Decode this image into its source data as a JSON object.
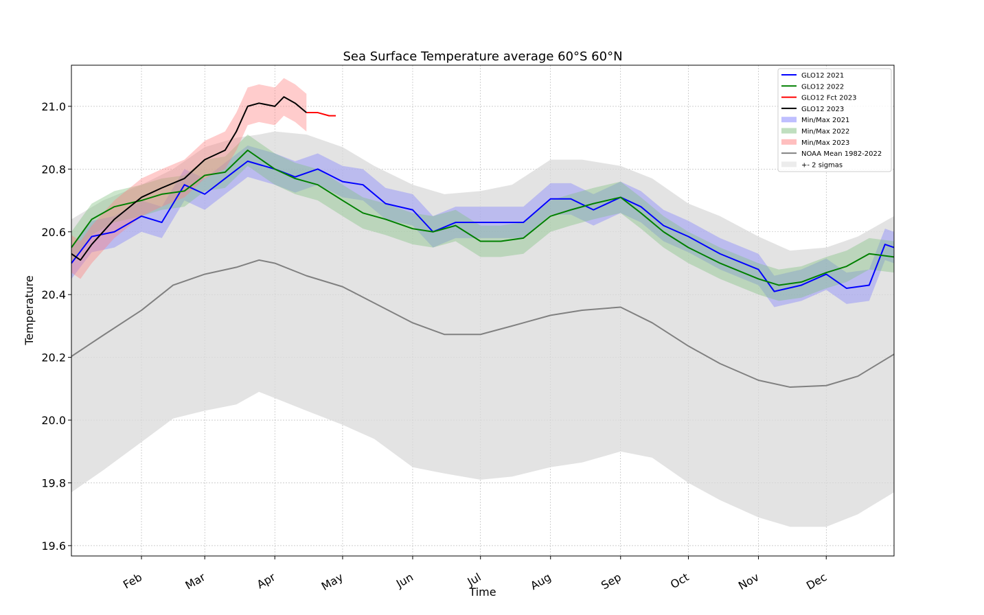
{
  "chart_data": {
    "type": "line",
    "title": "Sea Surface Temperature average 60°S 60°N",
    "xlabel": "Time",
    "ylabel": "Temperature",
    "xlim_doy": [
      1,
      365
    ],
    "ylim": [
      19.567,
      21.131
    ],
    "yticks": [
      19.6,
      19.8,
      20.0,
      20.2,
      20.4,
      20.6,
      20.8,
      21.0
    ],
    "xticks": [
      {
        "label": "Feb",
        "doy": 32
      },
      {
        "label": "Mar",
        "doy": 60
      },
      {
        "label": "Apr",
        "doy": 91
      },
      {
        "label": "May",
        "doy": 121
      },
      {
        "label": "Jun",
        "doy": 152
      },
      {
        "label": "Jul",
        "doy": 182
      },
      {
        "label": "Aug",
        "doy": 213
      },
      {
        "label": "Sep",
        "doy": 244
      },
      {
        "label": "Oct",
        "doy": 274
      },
      {
        "label": "Nov",
        "doy": 305
      },
      {
        "label": "Dec",
        "doy": 335
      }
    ],
    "grid": true,
    "legend_position": "top-right",
    "sigma_band": {
      "name": "+- 2 sigmas",
      "color": "#d9d9d9",
      "doy": [
        1,
        15,
        32,
        46,
        60,
        74,
        84,
        91,
        105,
        121,
        135,
        152,
        166,
        182,
        196,
        213,
        227,
        244,
        258,
        274,
        288,
        305,
        319,
        335,
        349,
        365
      ],
      "upper": [
        20.64,
        20.7,
        20.75,
        20.8,
        20.87,
        20.9,
        20.91,
        20.92,
        20.91,
        20.87,
        20.81,
        20.75,
        20.72,
        20.73,
        20.75,
        20.83,
        20.83,
        20.81,
        20.77,
        20.69,
        20.65,
        20.585,
        20.54,
        20.55,
        20.585,
        20.65
      ],
      "lower": [
        19.77,
        19.84,
        19.93,
        20.005,
        20.03,
        20.05,
        20.09,
        20.07,
        20.03,
        19.985,
        19.94,
        19.85,
        19.83,
        19.81,
        19.82,
        19.85,
        19.865,
        19.9,
        19.88,
        19.8,
        19.745,
        19.69,
        19.66,
        19.66,
        19.7,
        19.77
      ]
    },
    "noaa_mean": {
      "name": "NOAA Mean 1982-2022",
      "color": "#808080",
      "doy": [
        1,
        15,
        32,
        46,
        60,
        74,
        84,
        91,
        105,
        121,
        135,
        152,
        166,
        182,
        196,
        213,
        227,
        244,
        258,
        274,
        288,
        305,
        319,
        335,
        349,
        365
      ],
      "values": [
        20.203,
        20.27,
        20.35,
        20.43,
        20.465,
        20.487,
        20.51,
        20.5,
        20.46,
        20.425,
        20.373,
        20.31,
        20.273,
        20.273,
        20.3,
        20.334,
        20.35,
        20.36,
        20.31,
        20.236,
        20.18,
        20.127,
        20.105,
        20.11,
        20.14,
        20.21
      ]
    },
    "series": [
      {
        "name": "GLO12 2021",
        "color": "#0000ff",
        "band_name": "Min/Max 2021",
        "band_color": "#8080ff",
        "band_halfwidth": 0.05,
        "doy": [
          1,
          10,
          20,
          32,
          41,
          51,
          60,
          69,
          79,
          91,
          100,
          110,
          121,
          130,
          140,
          152,
          161,
          171,
          182,
          191,
          201,
          213,
          222,
          232,
          244,
          253,
          263,
          274,
          288,
          305,
          312,
          324,
          335,
          344,
          354,
          361,
          365
        ],
        "values": [
          20.5,
          20.585,
          20.6,
          20.65,
          20.63,
          20.75,
          20.72,
          20.77,
          20.825,
          20.8,
          20.775,
          20.8,
          20.76,
          20.75,
          20.69,
          20.67,
          20.6,
          20.63,
          20.63,
          20.63,
          20.63,
          20.705,
          20.705,
          20.67,
          20.71,
          20.68,
          20.62,
          20.585,
          20.53,
          20.48,
          20.41,
          20.43,
          20.465,
          20.42,
          20.43,
          20.56,
          20.55
        ]
      },
      {
        "name": "GLO12 2022",
        "color": "#008000",
        "band_name": "Min/Max 2022",
        "band_color": "#80c080",
        "band_halfwidth": 0.05,
        "doy": [
          1,
          10,
          20,
          32,
          41,
          51,
          60,
          69,
          79,
          91,
          100,
          110,
          121,
          130,
          140,
          152,
          161,
          171,
          182,
          191,
          201,
          213,
          222,
          232,
          244,
          253,
          263,
          274,
          288,
          305,
          314,
          324,
          335,
          344,
          354,
          365
        ],
        "values": [
          20.55,
          20.64,
          20.68,
          20.7,
          20.72,
          20.73,
          20.78,
          20.79,
          20.86,
          20.8,
          20.77,
          20.75,
          20.7,
          20.66,
          20.64,
          20.61,
          20.6,
          20.62,
          20.57,
          20.57,
          20.58,
          20.65,
          20.67,
          20.69,
          20.71,
          20.66,
          20.6,
          20.55,
          20.5,
          20.45,
          20.43,
          20.44,
          20.47,
          20.49,
          20.53,
          20.52
        ]
      },
      {
        "name": "GLO12 Fct 2023",
        "color": "#ff0000",
        "doy": [
          105,
          110,
          115,
          118
        ],
        "values": [
          20.98,
          20.98,
          20.97,
          20.97
        ]
      },
      {
        "name": "GLO12 2023",
        "color": "#000000",
        "band_name": "Min/Max 2023",
        "band_color": "#ff8080",
        "band_halfwidth": 0.06,
        "doy": [
          1,
          5,
          10,
          20,
          32,
          41,
          51,
          60,
          69,
          74,
          79,
          84,
          91,
          95,
          100,
          105
        ],
        "values": [
          20.53,
          20.51,
          20.56,
          20.64,
          20.71,
          20.74,
          20.77,
          20.83,
          20.86,
          20.92,
          21.0,
          21.01,
          21.0,
          21.03,
          21.01,
          20.98
        ]
      }
    ],
    "legend": [
      "GLO12 2021",
      "GLO12 2022",
      "GLO12 Fct 2023",
      "GLO12 2023",
      "Min/Max 2021",
      "Min/Max 2022",
      "Min/Max 2023",
      "NOAA Mean 1982-2022",
      "+- 2 sigmas"
    ]
  }
}
